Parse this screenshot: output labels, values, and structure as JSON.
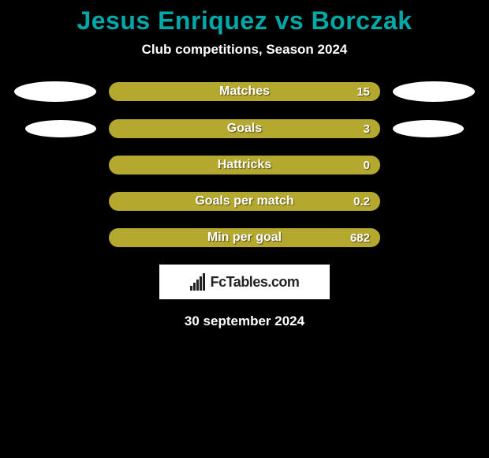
{
  "title": "Jesus Enriquez vs Borczak",
  "subtitle": "Club competitions, Season 2024",
  "date": "30 september 2024",
  "logo_text": "FcTables.com",
  "colors": {
    "title": "#00a8a8",
    "bar_fill": "#b5a82f",
    "bar_border": "#b5a82f",
    "background": "#000000",
    "text": "#ffffff",
    "logo_bg": "#ffffff"
  },
  "stats": [
    {
      "label": "Matches",
      "right_value": "15",
      "show_ovals": true,
      "oval_size": "large"
    },
    {
      "label": "Goals",
      "right_value": "3",
      "show_ovals": true,
      "oval_size": "small"
    },
    {
      "label": "Hattricks",
      "right_value": "0",
      "show_ovals": false
    },
    {
      "label": "Goals per match",
      "right_value": "0.2",
      "show_ovals": false
    },
    {
      "label": "Min per goal",
      "right_value": "682",
      "show_ovals": false
    }
  ]
}
